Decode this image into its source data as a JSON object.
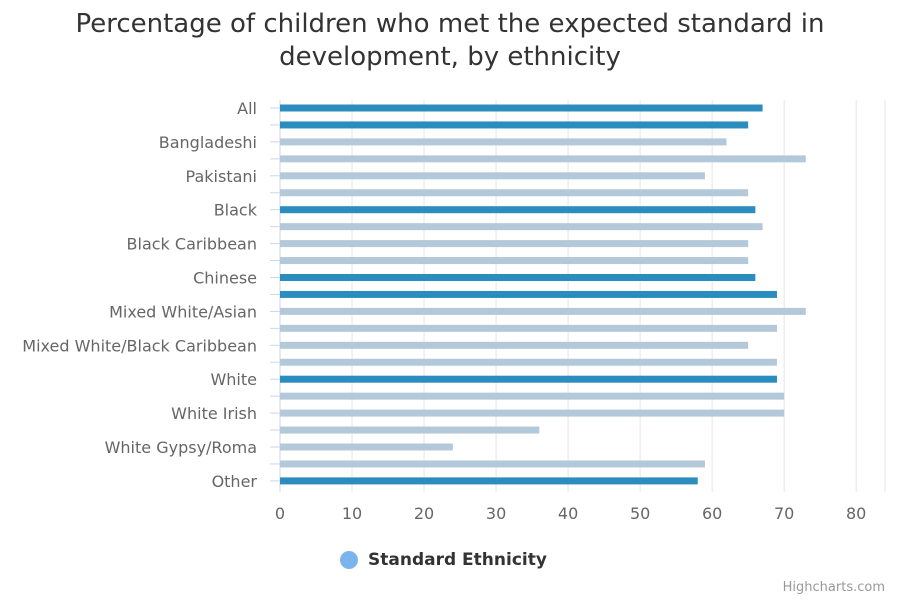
{
  "title_lines": [
    "Percentage of children who met the expected standard in",
    "development, by ethnicity"
  ],
  "legend": {
    "label": "Standard Ethnicity",
    "color": "#7cb5ec"
  },
  "credits": "Highcharts.com",
  "colors": {
    "highlight": "#2b8cbe",
    "muted": "#b3c9d9",
    "grid": "#e6e6e6",
    "axis_text": "#666666"
  },
  "chart_data": {
    "type": "bar",
    "orientation": "horizontal",
    "categories": [
      "All",
      "",
      "Bangladeshi",
      "",
      "Pakistani",
      "",
      "Black",
      "",
      "Black Caribbean",
      "",
      "Chinese",
      "",
      "Mixed White/Asian",
      "",
      "Mixed White/Black Caribbean",
      "",
      "White",
      "",
      "White Irish",
      "",
      "White Gypsy/Roma",
      "",
      "Other"
    ],
    "values": [
      67,
      65,
      62,
      73,
      59,
      65,
      66,
      67,
      65,
      65,
      66,
      69,
      73,
      69,
      65,
      69,
      69,
      70,
      70,
      36,
      24,
      59,
      58
    ],
    "bar_style": [
      "highlight",
      "highlight",
      "muted",
      "muted",
      "muted",
      "muted",
      "highlight",
      "muted",
      "muted",
      "muted",
      "highlight",
      "highlight",
      "muted",
      "muted",
      "muted",
      "muted",
      "highlight",
      "muted",
      "muted",
      "muted",
      "muted",
      "muted",
      "highlight"
    ],
    "x_ticks": [
      0,
      10,
      20,
      30,
      40,
      50,
      60,
      70,
      80
    ],
    "xlim": [
      0,
      80
    ],
    "grid": true,
    "legend_position": "bottom-center"
  }
}
